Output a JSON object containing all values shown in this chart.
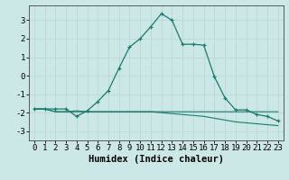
{
  "x": [
    0,
    1,
    2,
    3,
    4,
    5,
    6,
    7,
    8,
    9,
    10,
    11,
    12,
    13,
    14,
    15,
    16,
    17,
    18,
    19,
    20,
    21,
    22,
    23
  ],
  "line1": [
    -1.8,
    -1.8,
    -1.8,
    -1.8,
    -2.2,
    -1.9,
    -1.4,
    -0.8,
    0.4,
    1.55,
    2.0,
    2.65,
    3.35,
    3.0,
    1.7,
    1.7,
    1.65,
    -0.05,
    -1.2,
    -1.85,
    -1.85,
    -2.1,
    -2.2,
    -2.45
  ],
  "line2": [
    -1.8,
    -1.8,
    -1.95,
    -1.95,
    -1.9,
    -1.95,
    -1.95,
    -1.95,
    -1.95,
    -1.95,
    -1.95,
    -1.95,
    -2.0,
    -2.05,
    -2.1,
    -2.15,
    -2.2,
    -2.3,
    -2.4,
    -2.5,
    -2.55,
    -2.6,
    -2.65,
    -2.7
  ],
  "line3": [
    -1.8,
    -1.8,
    -1.95,
    -1.95,
    -1.95,
    -1.95,
    -1.95,
    -1.95,
    -1.95,
    -1.95,
    -1.95,
    -1.95,
    -1.95,
    -1.95,
    -1.95,
    -1.95,
    -1.95,
    -1.95,
    -1.95,
    -1.95,
    -1.95,
    -1.95,
    -1.95,
    -1.95
  ],
  "color": "#1a7a6e",
  "bg_color": "#cce8e6",
  "grid_color": "#b8d8d6",
  "xlabel": "Humidex (Indice chaleur)",
  "ylim": [
    -3.5,
    3.8
  ],
  "xlim": [
    -0.5,
    23.5
  ],
  "yticks": [
    -3,
    -2,
    -1,
    0,
    1,
    2,
    3
  ],
  "xticks": [
    0,
    1,
    2,
    3,
    4,
    5,
    6,
    7,
    8,
    9,
    10,
    11,
    12,
    13,
    14,
    15,
    16,
    17,
    18,
    19,
    20,
    21,
    22,
    23
  ],
  "tick_fontsize": 6.5,
  "xlabel_fontsize": 7.5
}
